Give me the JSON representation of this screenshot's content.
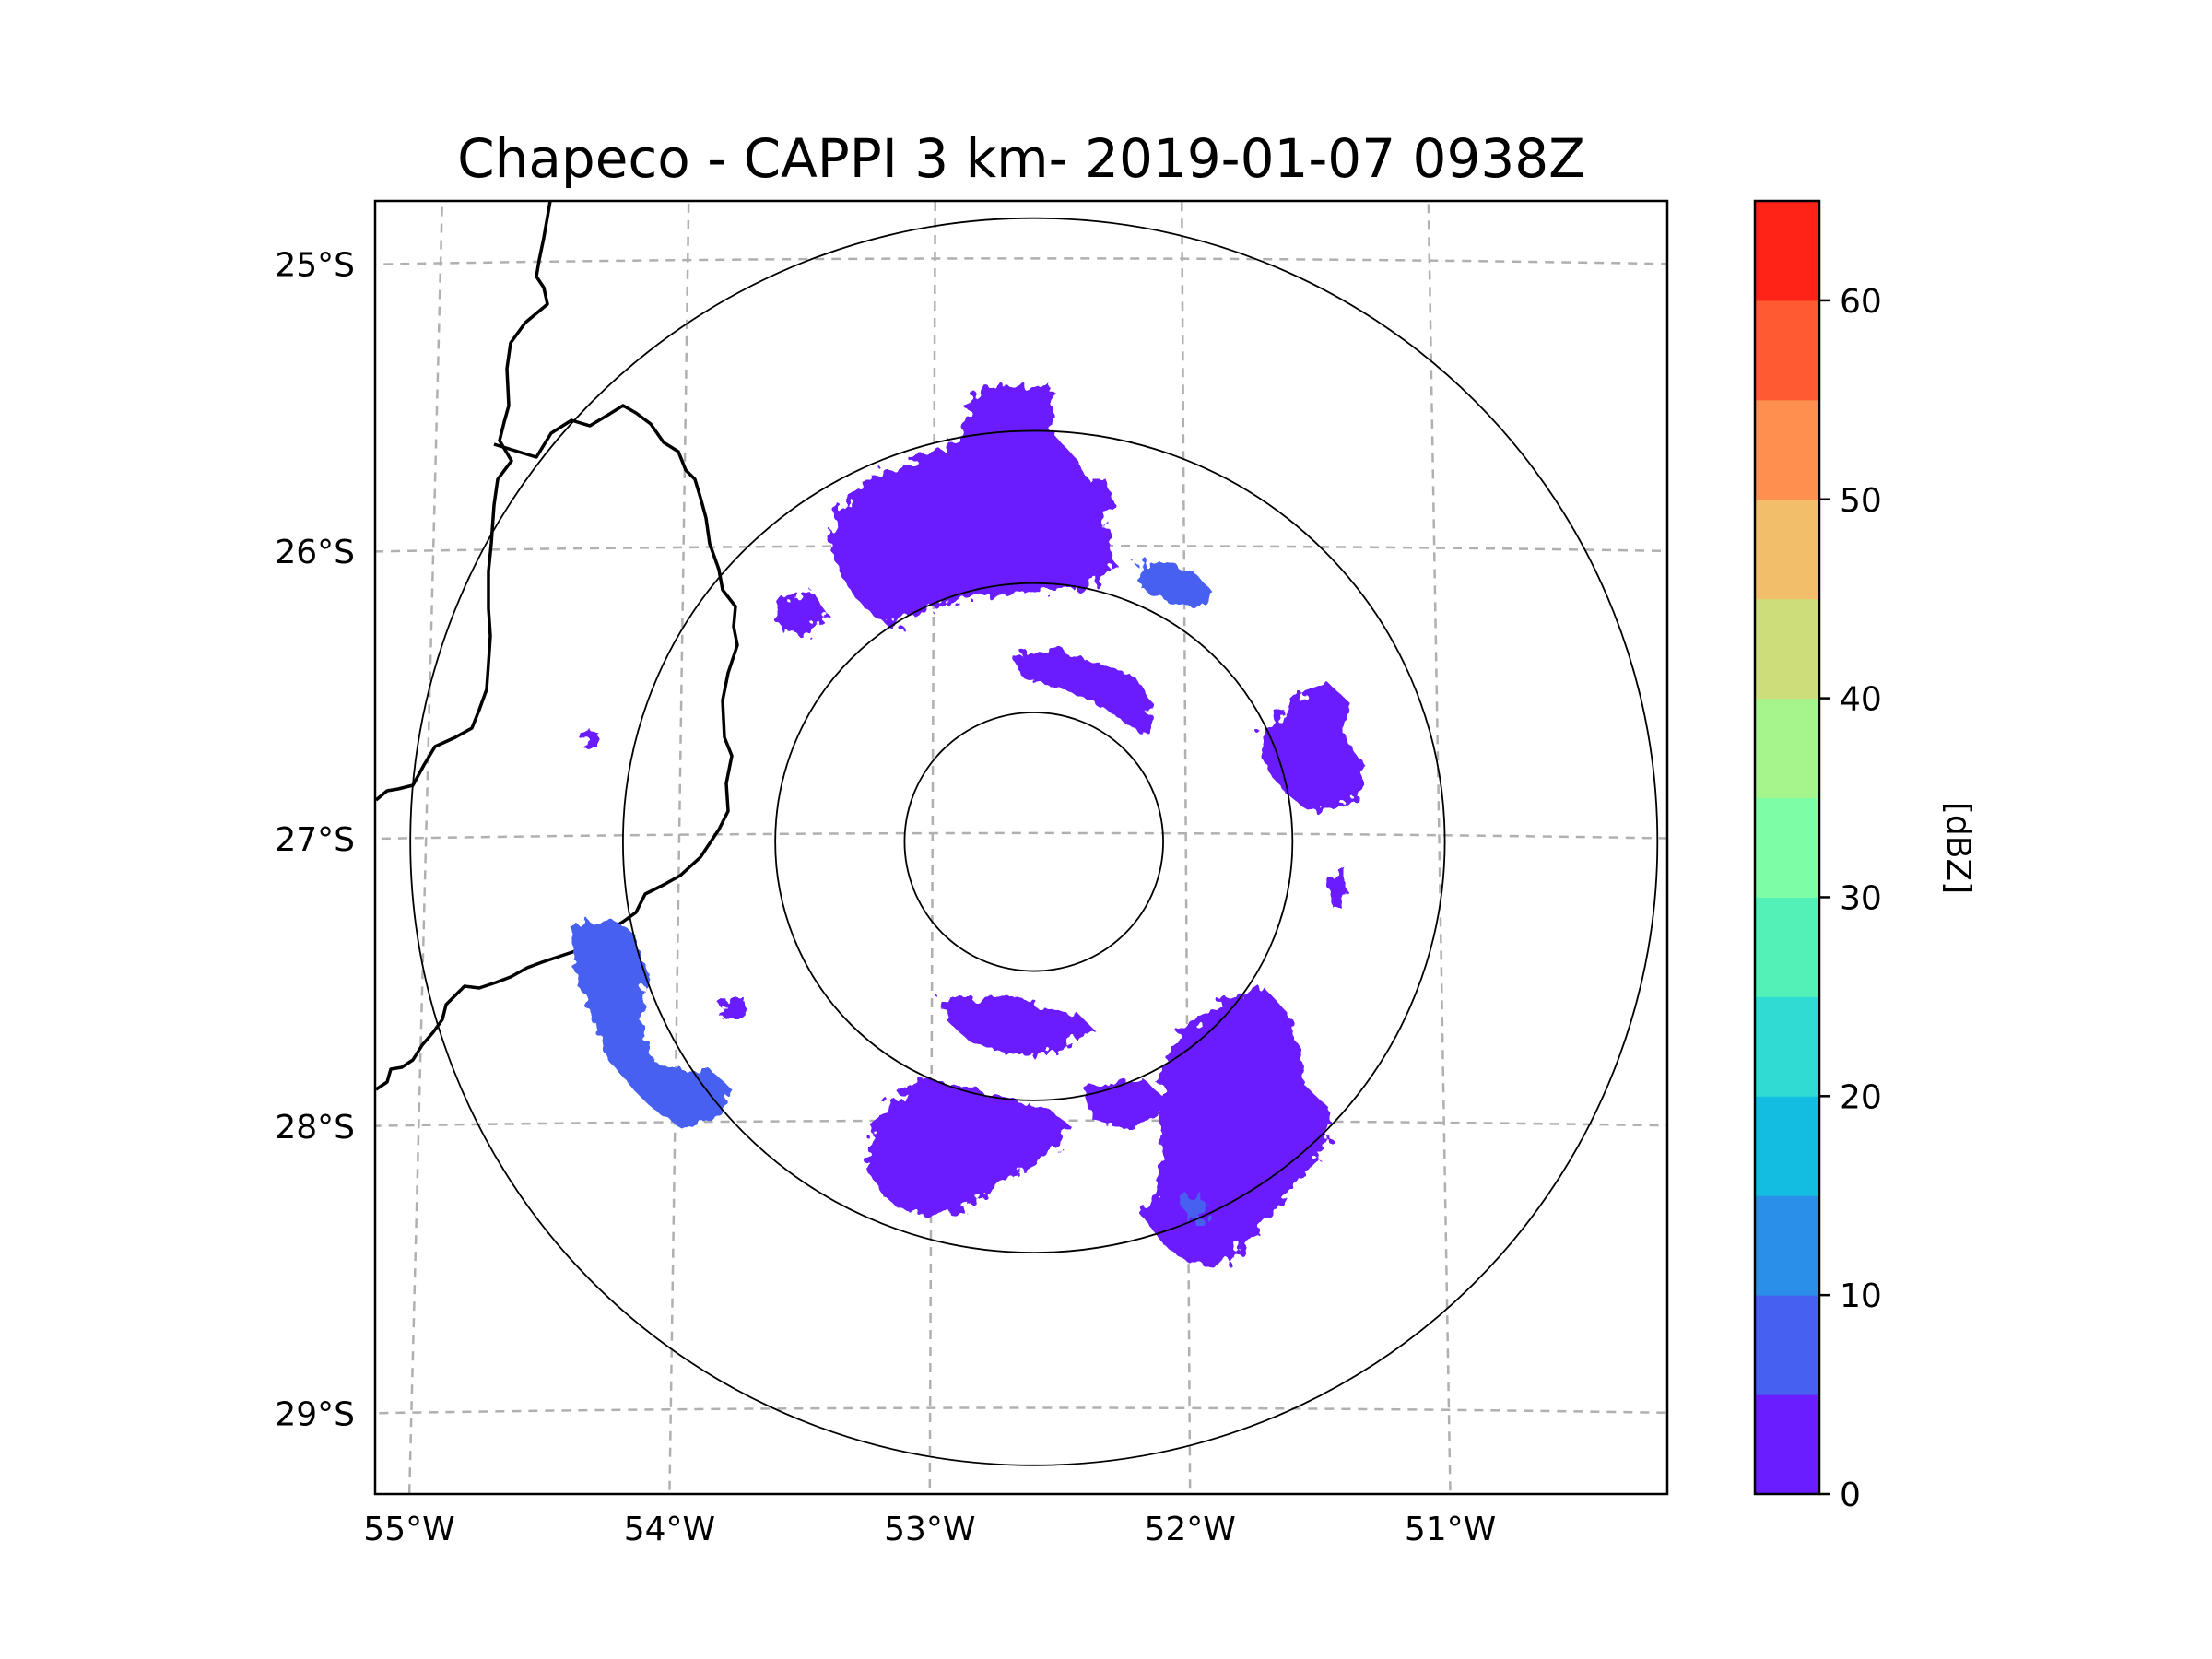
{
  "chart_data": {
    "type": "heatmap",
    "title": "Chapeco - CAPPI 3 km- 2019-01-07 0938Z",
    "projection": "map",
    "xlim_lon": [
      -55.2,
      -50.1
    ],
    "ylim_lat": [
      -29.3,
      -24.8
    ],
    "lon_ticks": [
      -55,
      -54,
      -53,
      -52,
      -51
    ],
    "lon_tick_labels": [
      "55°W",
      "54°W",
      "53°W",
      "52°W",
      "51°W"
    ],
    "lat_ticks": [
      -25,
      -26,
      -27,
      -28,
      -29
    ],
    "lat_tick_labels": [
      "25°S",
      "26°S",
      "27°S",
      "28°S",
      "29°S"
    ],
    "gridlines": true,
    "radar_center": {
      "lon": -52.6,
      "lat": -27.03
    },
    "range_rings_deg": [
      0.45,
      0.9,
      1.43,
      2.17
    ],
    "colorbar": {
      "label": "[dBZ]",
      "min": 0,
      "max": 65,
      "step": 5,
      "ticks": [
        0,
        10,
        20,
        30,
        40,
        50,
        60
      ],
      "tick_labels": [
        "0",
        "10",
        "20",
        "30",
        "40",
        "50",
        "60"
      ],
      "colors": [
        "#6a1dff",
        "#4660f0",
        "#2a8fe8",
        "#12bde1",
        "#2fdbd2",
        "#53f0b7",
        "#7dfea4",
        "#a4f58c",
        "#ccdd7a",
        "#f2be6a",
        "#ff8f4f",
        "#ff5b33",
        "#ff2216"
      ]
    },
    "echoes": [
      {
        "region": "north",
        "center": [
          -52.55,
          -25.95
        ],
        "dbz": 5
      },
      {
        "region": "north-northeast",
        "center": [
          -52.18,
          -26.45
        ],
        "dbz": 5
      },
      {
        "region": "northeast",
        "center": [
          -51.6,
          -26.8
        ],
        "dbz": 8
      },
      {
        "region": "southwest",
        "center": [
          -54.15,
          -27.7
        ],
        "dbz": 7
      },
      {
        "region": "south-southwest",
        "center": [
          -52.95,
          -28.15
        ],
        "dbz": 5
      },
      {
        "region": "south-southeast",
        "center": [
          -52.0,
          -28.1
        ],
        "dbz": 5
      }
    ]
  }
}
